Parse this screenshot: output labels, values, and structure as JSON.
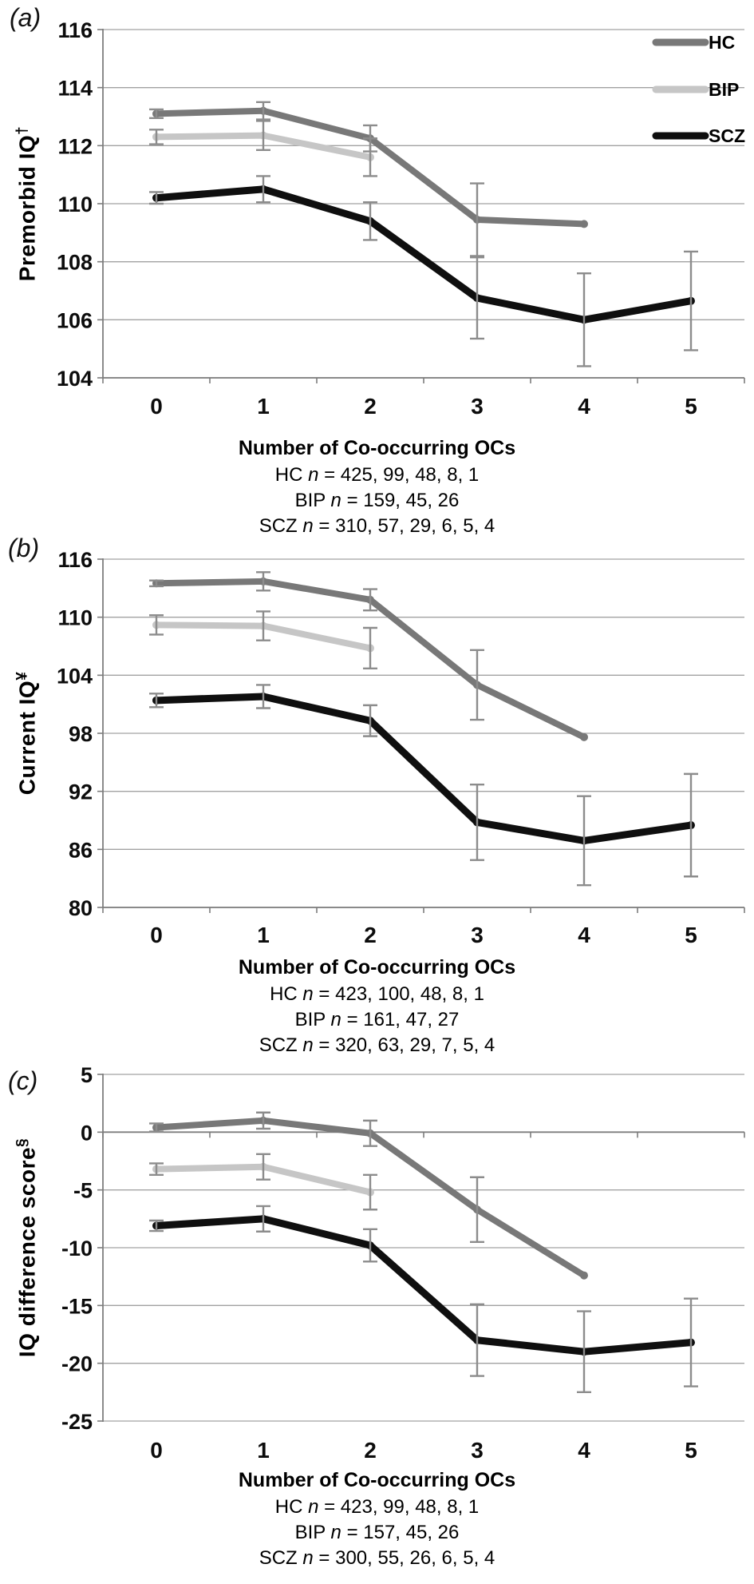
{
  "figure": {
    "panels": [
      {
        "label": "(a)",
        "ylabel": "Premorbid IQ",
        "ylabel_sup": "†"
      },
      {
        "label": "(b)",
        "ylabel": "Current IQ",
        "ylabel_sup": "¥"
      },
      {
        "label": "(c)",
        "ylabel": "IQ difference score",
        "ylabel_sup": "§"
      }
    ],
    "colors": {
      "hc": "#787878",
      "bip": "#c6c6c6",
      "scz": "#0f0f0f",
      "gridline": "#a2a2a2",
      "axis": "#7d7d7d",
      "error_bar": "#8c8c8c"
    }
  },
  "chart_data": [
    {
      "type": "line",
      "panel": "(a)",
      "ylabel": "Premorbid IQ†",
      "xlabel": "Number of Co-occurring OCs",
      "x": [
        0,
        1,
        2,
        3,
        4,
        5
      ],
      "ylim": [
        104,
        116
      ],
      "ytick_step": 2,
      "grid": true,
      "legend_position": "top-right",
      "series": [
        {
          "name": "HC",
          "color": "#787878",
          "width": 8,
          "values": [
            113.1,
            113.2,
            112.25,
            109.45,
            109.3
          ],
          "err": [
            0.15,
            0.3,
            0.45,
            1.25,
            0
          ]
        },
        {
          "name": "BIP",
          "color": "#c6c6c6",
          "width": 8,
          "values": [
            112.3,
            112.35,
            111.6
          ],
          "err": [
            0.25,
            0.5,
            0.65
          ]
        },
        {
          "name": "SCZ",
          "color": "#0f0f0f",
          "width": 9,
          "values": [
            110.2,
            110.5,
            109.4,
            106.75,
            106.0,
            106.65
          ],
          "err": [
            0.2,
            0.45,
            0.65,
            1.4,
            1.6,
            1.7
          ]
        }
      ],
      "notes": [
        "HC n = 425, 99, 48, 8, 1",
        "BIP n = 159, 45, 26",
        "SCZ n = 310, 57, 29, 6, 5, 4"
      ]
    },
    {
      "type": "line",
      "panel": "(b)",
      "ylabel": "Current IQ¥",
      "xlabel": "Number of Co-occurring OCs",
      "x": [
        0,
        1,
        2,
        3,
        4,
        5
      ],
      "ylim": [
        80,
        116
      ],
      "ytick_step": 6,
      "grid": true,
      "legend_position": "none",
      "series": [
        {
          "name": "HC",
          "color": "#787878",
          "width": 8,
          "values": [
            113.5,
            113.7,
            111.8,
            103.0,
            97.6
          ],
          "err": [
            0.3,
            0.95,
            1.1,
            3.6,
            0
          ]
        },
        {
          "name": "BIP",
          "color": "#c6c6c6",
          "width": 8,
          "values": [
            109.2,
            109.1,
            106.8
          ],
          "err": [
            1.0,
            1.5,
            2.1
          ]
        },
        {
          "name": "SCZ",
          "color": "#0f0f0f",
          "width": 9,
          "values": [
            101.4,
            101.8,
            99.3,
            88.8,
            86.9,
            88.5
          ],
          "err": [
            0.7,
            1.2,
            1.6,
            3.9,
            4.6,
            5.3
          ]
        }
      ],
      "notes": [
        "HC n = 423, 100, 48, 8, 1",
        "BIP n = 161, 47, 27",
        "SCZ n = 320, 63, 29, 7, 5, 4"
      ]
    },
    {
      "type": "line",
      "panel": "(c)",
      "ylabel": "IQ difference score§",
      "xlabel": "Number of Co-occurring OCs",
      "x": [
        0,
        1,
        2,
        3,
        4,
        5
      ],
      "ylim": [
        -25,
        5
      ],
      "ytick_step": 5,
      "grid": true,
      "axis_at_zero": true,
      "legend_position": "none",
      "series": [
        {
          "name": "HC",
          "color": "#787878",
          "width": 8,
          "values": [
            0.4,
            1.0,
            -0.1,
            -6.7,
            -12.4
          ],
          "err": [
            0.35,
            0.7,
            1.1,
            2.8,
            0
          ]
        },
        {
          "name": "BIP",
          "color": "#c6c6c6",
          "width": 8,
          "values": [
            -3.2,
            -3.0,
            -5.2
          ],
          "err": [
            0.5,
            1.1,
            1.5
          ]
        },
        {
          "name": "SCZ",
          "color": "#0f0f0f",
          "width": 9,
          "values": [
            -8.1,
            -7.5,
            -9.8,
            -18.0,
            -19.0,
            -18.2
          ],
          "err": [
            0.45,
            1.1,
            1.4,
            3.1,
            3.5,
            3.8
          ]
        }
      ],
      "notes": [
        "HC n = 423, 99, 48, 8, 1",
        "BIP n = 157, 45, 26",
        "SCZ n = 300, 55, 26, 6, 5, 4"
      ]
    }
  ]
}
